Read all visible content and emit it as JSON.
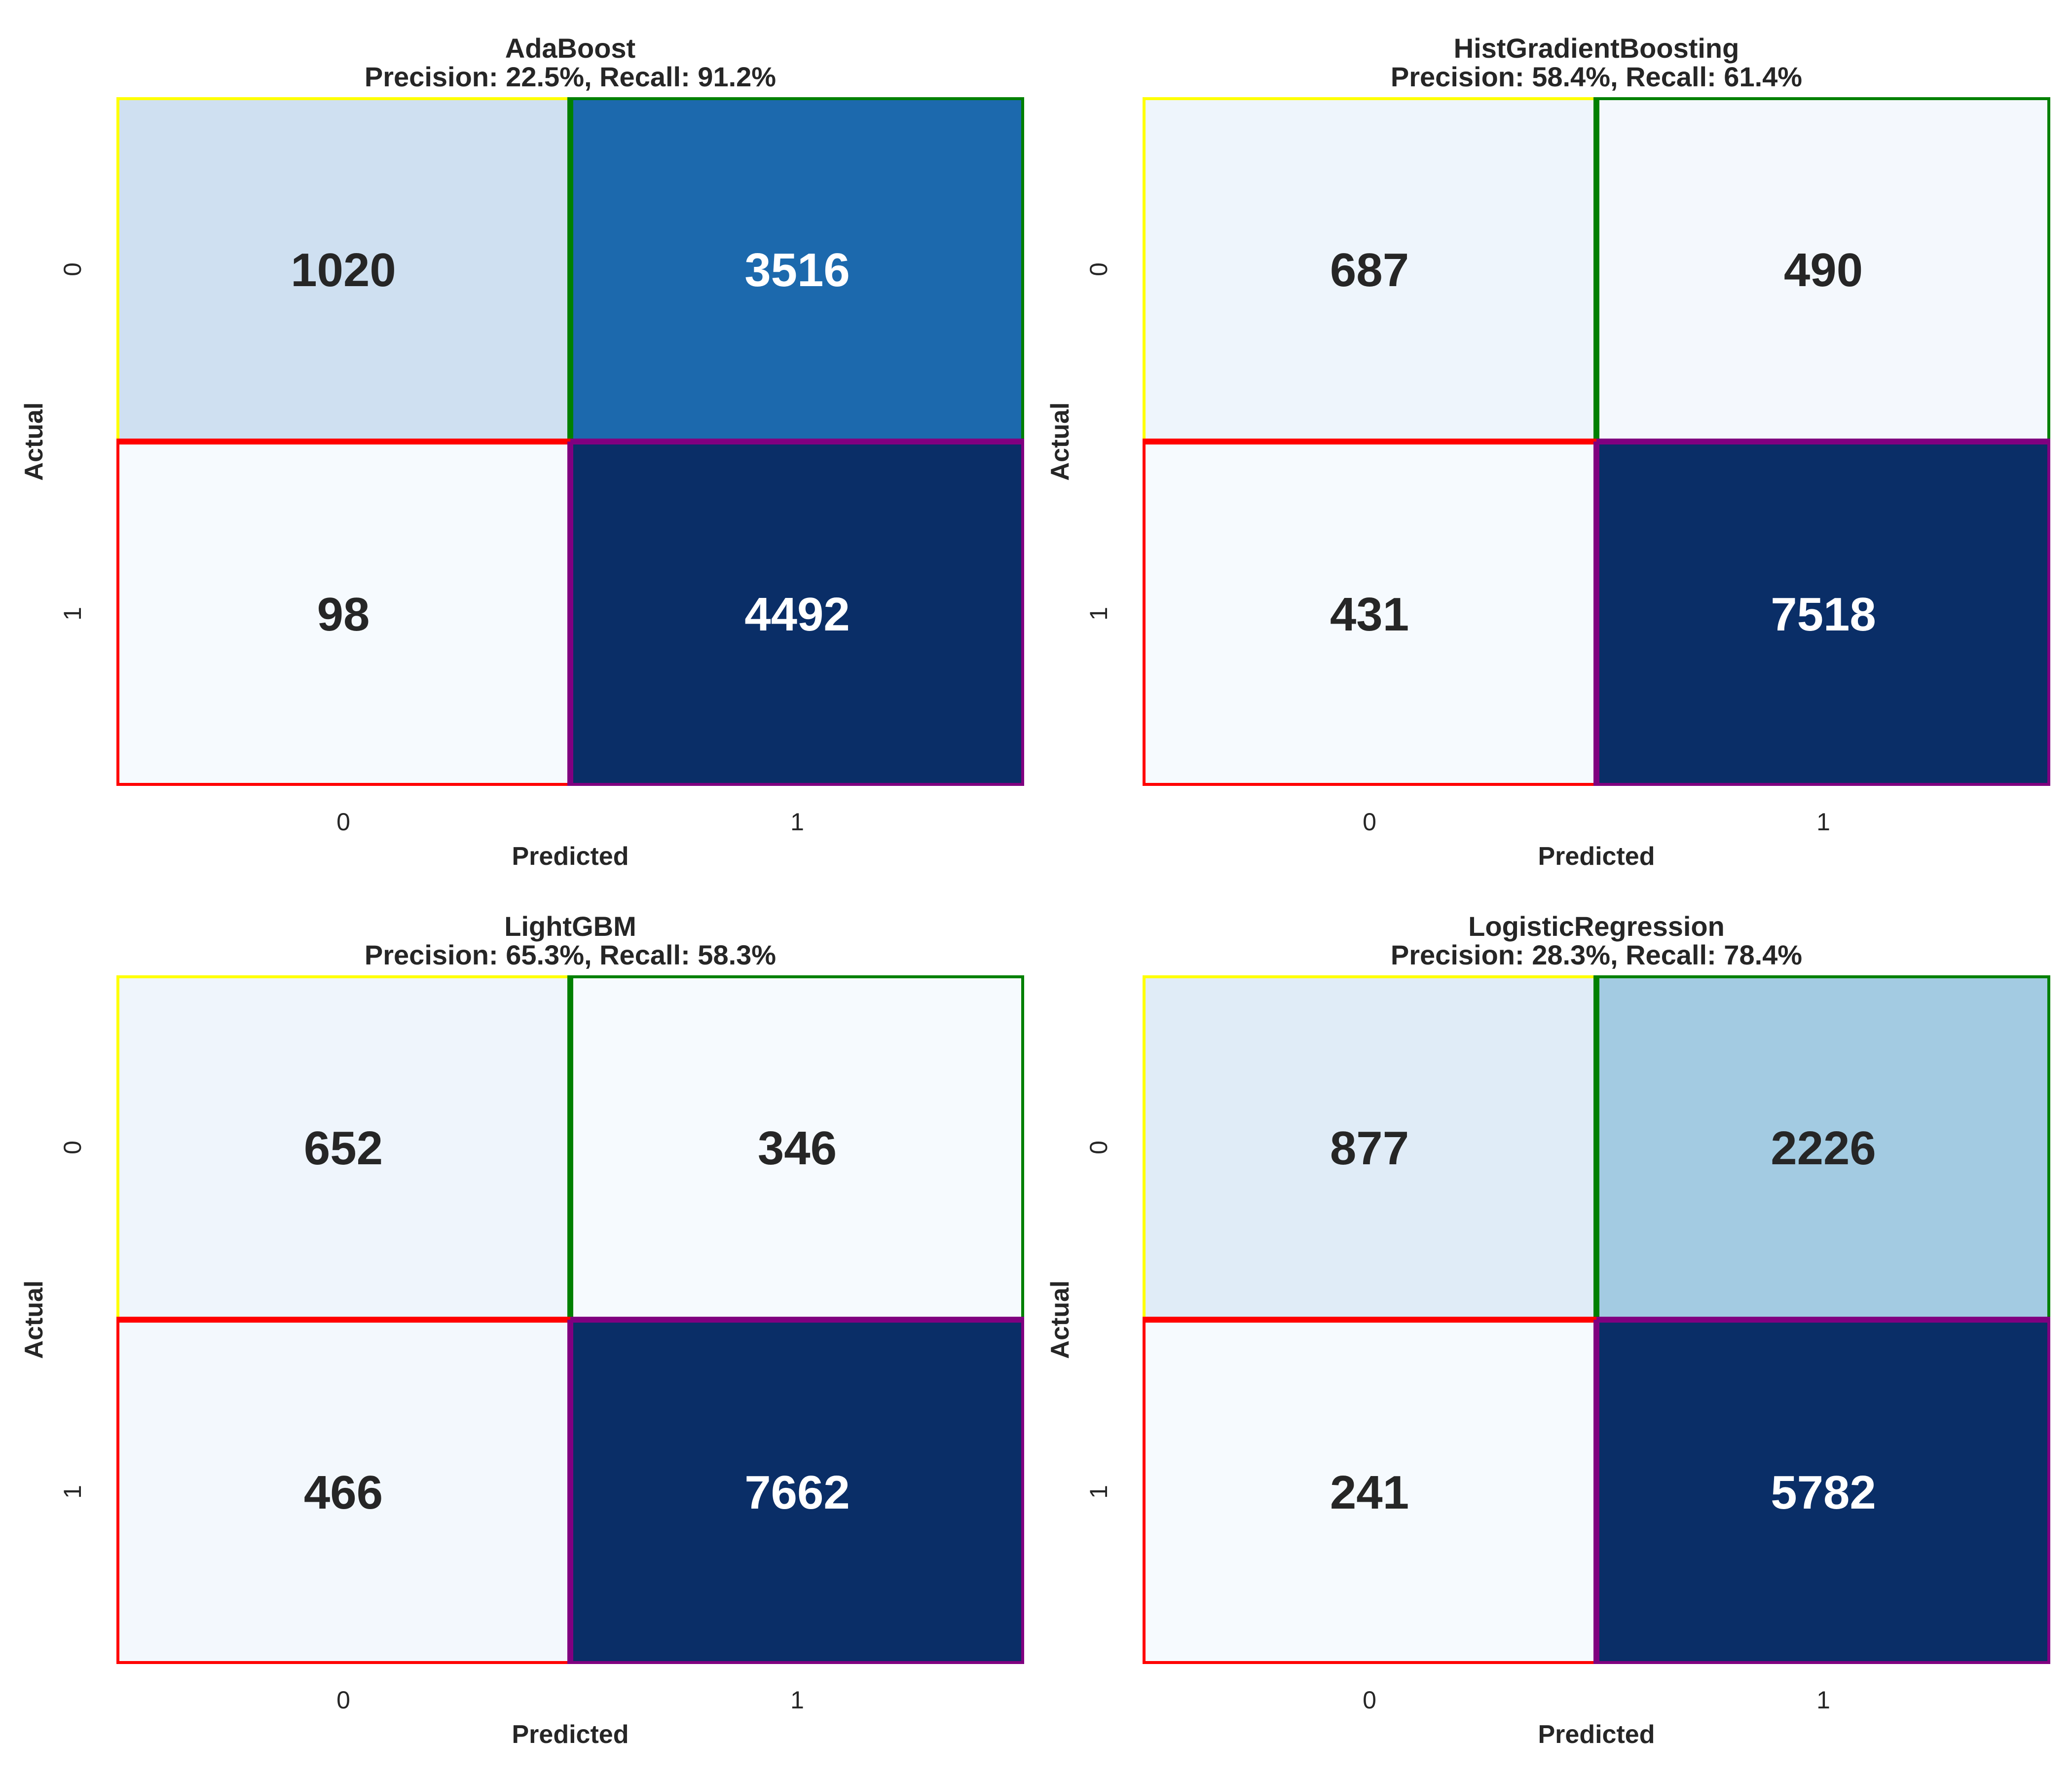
{
  "chart_data": [
    {
      "type": "heatmap",
      "title": "AdaBoost",
      "subtitle": "Precision: 22.5%, Recall: 91.2%",
      "xlabel": "Predicted",
      "ylabel": "Actual",
      "x_ticks": [
        "0",
        "1"
      ],
      "y_ticks": [
        "0",
        "1"
      ],
      "values": [
        [
          1020,
          3516
        ],
        [
          98,
          4492
        ]
      ],
      "cell_colors": [
        [
          "#cfe0f1",
          "#1c69ad"
        ],
        [
          "#f6fafe",
          "#0a2e67"
        ]
      ],
      "text_colors": [
        [
          "#262626",
          "#ffffff"
        ],
        [
          "#262626",
          "#ffffff"
        ]
      ],
      "colorbar": false
    },
    {
      "type": "heatmap",
      "title": "HistGradientBoosting",
      "subtitle": "Precision: 58.4%, Recall: 61.4%",
      "xlabel": "Predicted",
      "ylabel": "Actual",
      "x_ticks": [
        "0",
        "1"
      ],
      "y_ticks": [
        "0",
        "1"
      ],
      "values": [
        [
          687,
          490
        ],
        [
          431,
          7518
        ]
      ],
      "cell_colors": [
        [
          "#eef5fc",
          "#f4f8fd"
        ],
        [
          "#f6fafe",
          "#0a2e67"
        ]
      ],
      "text_colors": [
        [
          "#262626",
          "#262626"
        ],
        [
          "#262626",
          "#ffffff"
        ]
      ],
      "colorbar": false
    },
    {
      "type": "heatmap",
      "title": "LightGBM",
      "subtitle": "Precision: 65.3%, Recall: 58.3%",
      "xlabel": "Predicted",
      "ylabel": "Actual",
      "x_ticks": [
        "0",
        "1"
      ],
      "y_ticks": [
        "0",
        "1"
      ],
      "values": [
        [
          652,
          346
        ],
        [
          466,
          7662
        ]
      ],
      "cell_colors": [
        [
          "#eff5fc",
          "#f6fafe"
        ],
        [
          "#f3f8fd",
          "#0a2e67"
        ]
      ],
      "text_colors": [
        [
          "#262626",
          "#262626"
        ],
        [
          "#262626",
          "#ffffff"
        ]
      ],
      "colorbar": false
    },
    {
      "type": "heatmap",
      "title": "LogisticRegression",
      "subtitle": "Precision: 28.3%, Recall: 78.4%",
      "xlabel": "Predicted",
      "ylabel": "Actual",
      "x_ticks": [
        "0",
        "1"
      ],
      "y_ticks": [
        "0",
        "1"
      ],
      "values": [
        [
          877,
          2226
        ],
        [
          241,
          5782
        ]
      ],
      "cell_colors": [
        [
          "#e0ecf7",
          "#a3cbe2"
        ],
        [
          "#f6fafe",
          "#0a2e67"
        ]
      ],
      "text_colors": [
        [
          "#262626",
          "#262626"
        ],
        [
          "#262626",
          "#ffffff"
        ]
      ],
      "colorbar": false
    }
  ],
  "highlight_colors": {
    "true_negative": "#ffff00",
    "false_positive": "#008000",
    "false_negative": "#ff0000",
    "true_positive": "#800080"
  }
}
